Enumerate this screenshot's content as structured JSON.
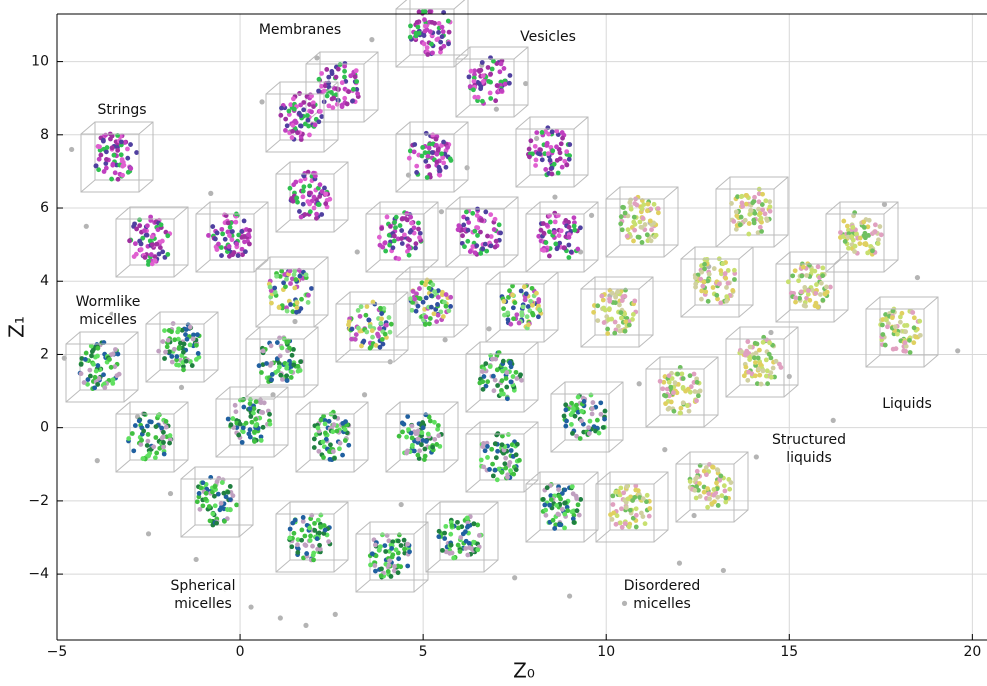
{
  "chart_data": {
    "type": "scatter",
    "xlabel": "Z₀",
    "ylabel": "Z₁",
    "x": [
      -4.6,
      -4.2,
      -3.5,
      -2.8,
      -1.9,
      -1.2,
      -0.4,
      0.3,
      1.1,
      1.8,
      2.6,
      3.4,
      4.1,
      4.8,
      5.5,
      6.2,
      7.0,
      7.8,
      8.6,
      9.3,
      10.1,
      10.9,
      11.6,
      12.4,
      13.2,
      14.1,
      15.0,
      15.8,
      16.7,
      17.6,
      18.5,
      19.6,
      -4.8,
      -3.9,
      -2.5,
      -0.8,
      0.6,
      2.1,
      3.6,
      5.1,
      6.6,
      8.1,
      9.6,
      11.2,
      12.8,
      14.5,
      16.2,
      2.9,
      4.4,
      6.0,
      7.5,
      9.0,
      3.2,
      5.6,
      1.5,
      -1.6,
      10.5,
      12.0,
      0.9,
      4.6,
      6.8
    ],
    "values": [
      7.6,
      5.5,
      3.1,
      0.3,
      -1.8,
      -3.6,
      -4.4,
      -4.9,
      -5.2,
      -5.4,
      -5.1,
      0.9,
      1.8,
      3.4,
      5.9,
      7.1,
      8.7,
      9.4,
      6.3,
      4.8,
      3.6,
      1.2,
      -0.6,
      -2.4,
      -3.9,
      -0.8,
      1.4,
      3.3,
      5.2,
      6.1,
      4.1,
      2.1,
      1.9,
      -0.9,
      -2.9,
      6.4,
      8.9,
      10.1,
      10.6,
      11.0,
      9.9,
      7.9,
      5.8,
      5.6,
      4.4,
      2.6,
      0.2,
      -0.3,
      -2.1,
      -3.3,
      -4.1,
      -4.6,
      4.8,
      2.4,
      2.9,
      1.1,
      -4.8,
      -3.7,
      0.9,
      6.9,
      2.7
    ],
    "color": "#b4b4b4",
    "xlim": [
      -5,
      20.4
    ],
    "ylim": [
      -5.8,
      11.3
    ],
    "xticks": [
      {
        "value": -5,
        "label": "−5"
      },
      0,
      5,
      10,
      15,
      20
    ],
    "yticks": [
      {
        "value": -4,
        "label": "−4"
      },
      {
        "value": -2,
        "label": "−2"
      },
      0,
      2,
      4,
      6,
      8,
      10
    ],
    "grid": true,
    "annotations": [
      [
        "Membranes"
      ],
      [
        "Vesicles"
      ],
      [
        "Strings"
      ],
      [
        "Wormlike",
        "micelles"
      ],
      [
        "Spherical",
        "micelles"
      ],
      [
        "Disordered",
        "micelles"
      ],
      [
        "Structured",
        "liquids"
      ],
      [
        "Liquids"
      ]
    ]
  }
}
